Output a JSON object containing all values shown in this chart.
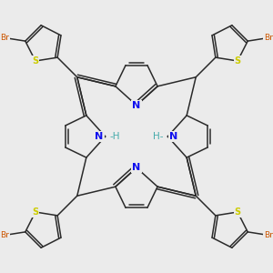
{
  "background_color": "#ebebeb",
  "bond_color": "#2a2a2a",
  "N_color": "#1010ee",
  "S_color": "#cccc00",
  "Br_color": "#cc5500",
  "H_color": "#44aaaa",
  "bond_lw": 1.1,
  "figsize": [
    3.0,
    3.0
  ],
  "dpi": 100,
  "xlim": [
    -3.8,
    3.8
  ],
  "ylim": [
    -3.8,
    3.8
  ]
}
